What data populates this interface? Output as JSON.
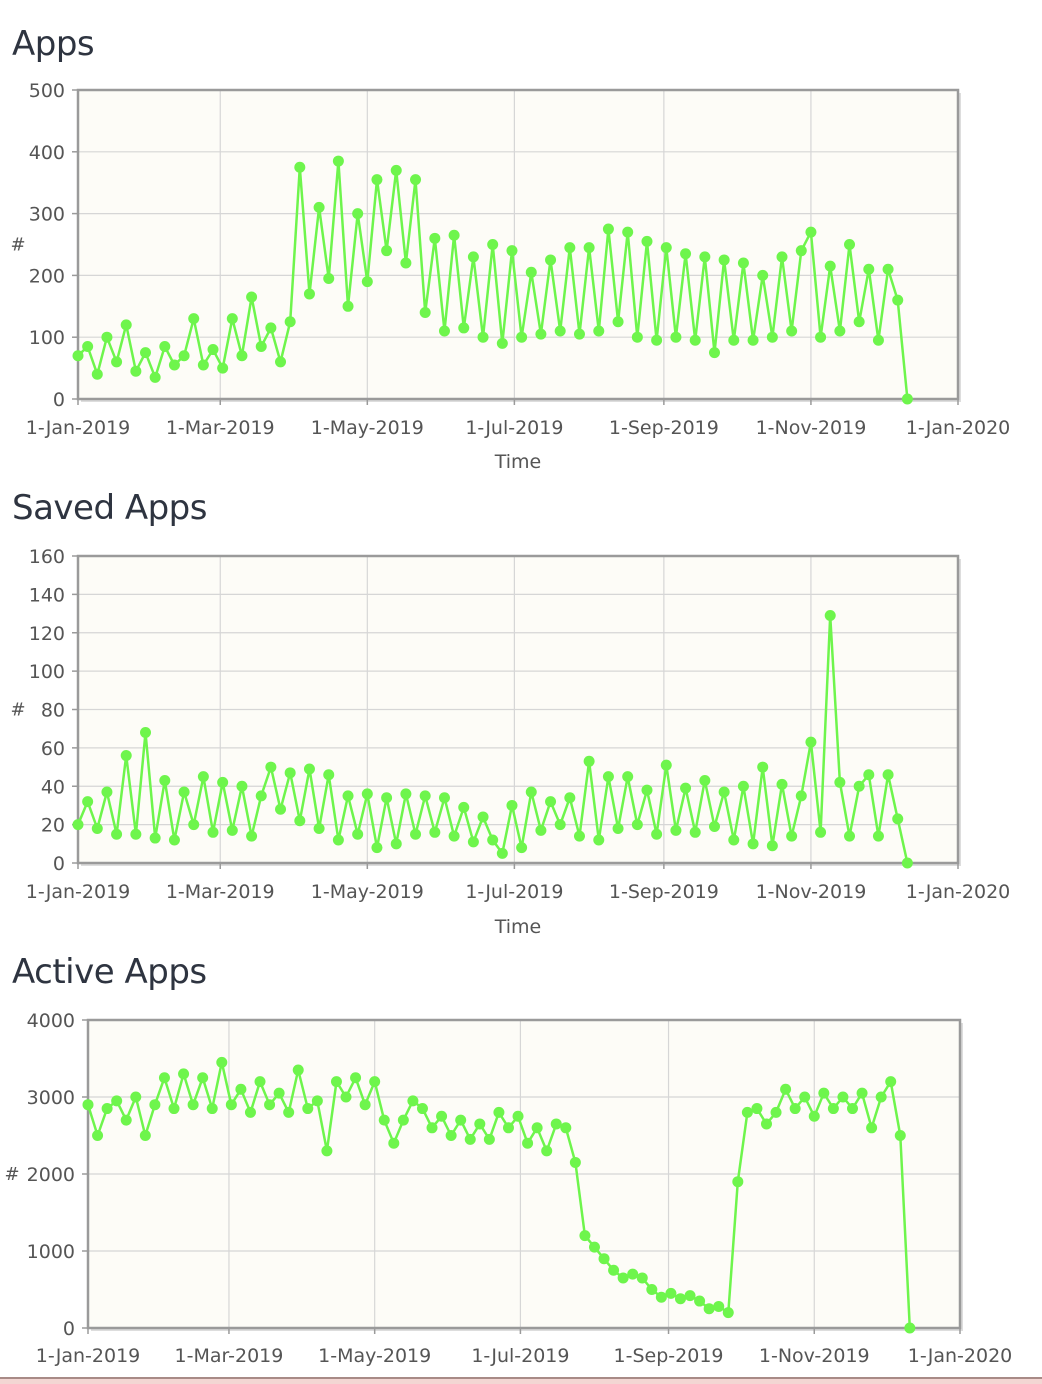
{
  "colors": {
    "series": "#6ef54c",
    "plot_bg": "#fdfcf7",
    "grid": "#d6d6d6",
    "frame": "#9a9a9a"
  },
  "chart_data": [
    {
      "title": "Apps",
      "type": "line",
      "xlabel": "Time",
      "ylabel": "#",
      "ylim": [
        0,
        500
      ],
      "yticks": [
        0,
        100,
        200,
        300,
        400,
        500
      ],
      "xlim": [
        "2019-01-01",
        "2020-01-01"
      ],
      "xticks": [
        [
          "2019-01-01",
          "1-Jan-2019"
        ],
        [
          "2019-03-01",
          "1-Mar-2019"
        ],
        [
          "2019-05-01",
          "1-May-2019"
        ],
        [
          "2019-07-01",
          "1-Jul-2019"
        ],
        [
          "2019-09-01",
          "1-Sep-2019"
        ],
        [
          "2019-11-01",
          "1-Nov-2019"
        ],
        [
          "2020-01-01",
          "1-Jan-2020"
        ]
      ],
      "grid": true,
      "markers": true,
      "x": [
        "2019-01-01",
        "2019-01-05",
        "2019-01-09",
        "2019-01-13",
        "2019-01-17",
        "2019-01-21",
        "2019-01-25",
        "2019-01-29",
        "2019-02-02",
        "2019-02-06",
        "2019-02-10",
        "2019-02-14",
        "2019-02-18",
        "2019-02-22",
        "2019-02-26",
        "2019-03-02",
        "2019-03-06",
        "2019-03-10",
        "2019-03-14",
        "2019-03-18",
        "2019-03-22",
        "2019-03-26",
        "2019-03-30",
        "2019-04-03",
        "2019-04-07",
        "2019-04-11",
        "2019-04-15",
        "2019-04-19",
        "2019-04-23",
        "2019-04-27",
        "2019-05-01",
        "2019-05-05",
        "2019-05-09",
        "2019-05-13",
        "2019-05-17",
        "2019-05-21",
        "2019-05-25",
        "2019-05-29",
        "2019-06-02",
        "2019-06-06",
        "2019-06-10",
        "2019-06-14",
        "2019-06-18",
        "2019-06-22",
        "2019-06-26",
        "2019-06-30",
        "2019-07-04",
        "2019-07-08",
        "2019-07-12",
        "2019-07-16",
        "2019-07-20",
        "2019-07-24",
        "2019-07-28",
        "2019-08-01",
        "2019-08-05",
        "2019-08-09",
        "2019-08-13",
        "2019-08-17",
        "2019-08-21",
        "2019-08-25",
        "2019-08-29",
        "2019-09-02",
        "2019-09-06",
        "2019-09-10",
        "2019-09-14",
        "2019-09-18",
        "2019-09-22",
        "2019-09-26",
        "2019-09-30",
        "2019-10-04",
        "2019-10-08",
        "2019-10-12",
        "2019-10-16",
        "2019-10-20",
        "2019-10-24",
        "2019-10-28",
        "2019-11-01",
        "2019-11-05",
        "2019-11-09",
        "2019-11-13",
        "2019-11-17",
        "2019-11-21",
        "2019-11-25",
        "2019-11-29",
        "2019-12-03",
        "2019-12-07",
        "2019-12-11"
      ],
      "values": [
        70,
        85,
        40,
        100,
        60,
        120,
        45,
        75,
        35,
        85,
        55,
        70,
        130,
        55,
        80,
        50,
        130,
        70,
        165,
        85,
        115,
        60,
        125,
        375,
        170,
        310,
        195,
        385,
        150,
        300,
        190,
        355,
        240,
        370,
        220,
        355,
        140,
        260,
        110,
        265,
        115,
        230,
        100,
        250,
        90,
        240,
        100,
        205,
        105,
        225,
        110,
        245,
        105,
        245,
        110,
        275,
        125,
        270,
        100,
        255,
        95,
        245,
        100,
        235,
        95,
        230,
        75,
        225,
        95,
        220,
        95,
        200,
        100,
        230,
        110,
        240,
        270,
        100,
        215,
        110,
        250,
        125,
        210,
        95,
        210,
        160,
        0
      ]
    },
    {
      "title": "Saved Apps",
      "type": "line",
      "xlabel": "Time",
      "ylabel": "#",
      "ylim": [
        0,
        160
      ],
      "yticks": [
        0,
        20,
        40,
        60,
        80,
        100,
        120,
        140,
        160
      ],
      "xlim": [
        "2019-01-01",
        "2020-01-01"
      ],
      "xticks": [
        [
          "2019-01-01",
          "1-Jan-2019"
        ],
        [
          "2019-03-01",
          "1-Mar-2019"
        ],
        [
          "2019-05-01",
          "1-May-2019"
        ],
        [
          "2019-07-01",
          "1-Jul-2019"
        ],
        [
          "2019-09-01",
          "1-Sep-2019"
        ],
        [
          "2019-11-01",
          "1-Nov-2019"
        ],
        [
          "2020-01-01",
          "1-Jan-2020"
        ]
      ],
      "grid": true,
      "markers": true,
      "x": [
        "2019-01-01",
        "2019-01-05",
        "2019-01-09",
        "2019-01-13",
        "2019-01-17",
        "2019-01-21",
        "2019-01-25",
        "2019-01-29",
        "2019-02-02",
        "2019-02-06",
        "2019-02-10",
        "2019-02-14",
        "2019-02-18",
        "2019-02-22",
        "2019-02-26",
        "2019-03-02",
        "2019-03-06",
        "2019-03-10",
        "2019-03-14",
        "2019-03-18",
        "2019-03-22",
        "2019-03-26",
        "2019-03-30",
        "2019-04-03",
        "2019-04-07",
        "2019-04-11",
        "2019-04-15",
        "2019-04-19",
        "2019-04-23",
        "2019-04-27",
        "2019-05-01",
        "2019-05-05",
        "2019-05-09",
        "2019-05-13",
        "2019-05-17",
        "2019-05-21",
        "2019-05-25",
        "2019-05-29",
        "2019-06-02",
        "2019-06-06",
        "2019-06-10",
        "2019-06-14",
        "2019-06-18",
        "2019-06-22",
        "2019-06-26",
        "2019-06-30",
        "2019-07-04",
        "2019-07-08",
        "2019-07-12",
        "2019-07-16",
        "2019-07-20",
        "2019-07-24",
        "2019-07-28",
        "2019-08-01",
        "2019-08-05",
        "2019-08-09",
        "2019-08-13",
        "2019-08-17",
        "2019-08-21",
        "2019-08-25",
        "2019-08-29",
        "2019-09-02",
        "2019-09-06",
        "2019-09-10",
        "2019-09-14",
        "2019-09-18",
        "2019-09-22",
        "2019-09-26",
        "2019-09-30",
        "2019-10-04",
        "2019-10-08",
        "2019-10-12",
        "2019-10-16",
        "2019-10-20",
        "2019-10-24",
        "2019-10-28",
        "2019-11-01",
        "2019-11-05",
        "2019-11-09",
        "2019-11-13",
        "2019-11-17",
        "2019-11-21",
        "2019-11-25",
        "2019-11-29",
        "2019-12-03",
        "2019-12-07",
        "2019-12-11"
      ],
      "values": [
        20,
        32,
        18,
        37,
        15,
        56,
        15,
        68,
        13,
        43,
        12,
        37,
        20,
        45,
        16,
        42,
        17,
        40,
        14,
        35,
        50,
        28,
        47,
        22,
        49,
        18,
        46,
        12,
        35,
        15,
        36,
        8,
        34,
        10,
        36,
        15,
        35,
        16,
        34,
        14,
        29,
        11,
        24,
        12,
        5,
        30,
        8,
        37,
        17,
        32,
        20,
        34,
        14,
        53,
        12,
        45,
        18,
        45,
        20,
        38,
        15,
        51,
        17,
        39,
        16,
        43,
        19,
        37,
        12,
        40,
        10,
        50,
        9,
        41,
        14,
        35,
        63,
        16,
        129,
        42,
        14,
        40,
        46,
        14,
        46,
        23,
        0
      ]
    },
    {
      "title": "Active Apps",
      "type": "line",
      "xlabel": "",
      "ylabel": "#",
      "ylim": [
        0,
        4000
      ],
      "yticks": [
        0,
        1000,
        2000,
        3000,
        4000
      ],
      "xlim": [
        "2019-01-01",
        "2020-01-01"
      ],
      "xticks": [
        [
          "2019-01-01",
          "1-Jan-2019"
        ],
        [
          "2019-03-01",
          "1-Mar-2019"
        ],
        [
          "2019-05-01",
          "1-May-2019"
        ],
        [
          "2019-07-01",
          "1-Jul-2019"
        ],
        [
          "2019-09-01",
          "1-Sep-2019"
        ],
        [
          "2019-11-01",
          "1-Nov-2019"
        ],
        [
          "2020-01-01",
          "1-Jan-2020"
        ]
      ],
      "grid": true,
      "markers": true,
      "x": [
        "2019-01-01",
        "2019-01-05",
        "2019-01-09",
        "2019-01-13",
        "2019-01-17",
        "2019-01-21",
        "2019-01-25",
        "2019-01-29",
        "2019-02-02",
        "2019-02-06",
        "2019-02-10",
        "2019-02-14",
        "2019-02-18",
        "2019-02-22",
        "2019-02-26",
        "2019-03-02",
        "2019-03-06",
        "2019-03-10",
        "2019-03-14",
        "2019-03-18",
        "2019-03-22",
        "2019-03-26",
        "2019-03-30",
        "2019-04-03",
        "2019-04-07",
        "2019-04-11",
        "2019-04-15",
        "2019-04-19",
        "2019-04-23",
        "2019-04-27",
        "2019-05-01",
        "2019-05-05",
        "2019-05-09",
        "2019-05-13",
        "2019-05-17",
        "2019-05-21",
        "2019-05-25",
        "2019-05-29",
        "2019-06-02",
        "2019-06-06",
        "2019-06-10",
        "2019-06-14",
        "2019-06-18",
        "2019-06-22",
        "2019-06-26",
        "2019-06-30",
        "2019-07-04",
        "2019-07-08",
        "2019-07-12",
        "2019-07-16",
        "2019-07-20",
        "2019-07-24",
        "2019-07-28",
        "2019-08-01",
        "2019-08-05",
        "2019-08-09",
        "2019-08-13",
        "2019-08-17",
        "2019-08-21",
        "2019-08-25",
        "2019-08-29",
        "2019-09-02",
        "2019-09-06",
        "2019-09-10",
        "2019-09-14",
        "2019-09-18",
        "2019-09-22",
        "2019-09-26",
        "2019-09-30",
        "2019-10-04",
        "2019-10-08",
        "2019-10-12",
        "2019-10-16",
        "2019-10-20",
        "2019-10-24",
        "2019-10-28",
        "2019-11-01",
        "2019-11-05",
        "2019-11-09",
        "2019-11-13",
        "2019-11-17",
        "2019-11-21",
        "2019-11-25",
        "2019-11-29",
        "2019-12-03",
        "2019-12-07",
        "2019-12-11"
      ],
      "values": [
        2900,
        2500,
        2850,
        2950,
        2700,
        3000,
        2500,
        2900,
        3250,
        2850,
        3300,
        2900,
        3250,
        2850,
        3450,
        2900,
        3100,
        2800,
        3200,
        2900,
        3050,
        2800,
        3350,
        2850,
        2950,
        2300,
        3200,
        3000,
        3250,
        2900,
        3200,
        2700,
        2400,
        2700,
        2950,
        2850,
        2600,
        2750,
        2500,
        2700,
        2450,
        2650,
        2450,
        2800,
        2600,
        2750,
        2400,
        2600,
        2300,
        2650,
        2600,
        2150,
        1200,
        1050,
        900,
        750,
        650,
        700,
        650,
        500,
        400,
        450,
        380,
        420,
        350,
        250,
        280,
        200,
        1900,
        2800,
        2850,
        2650,
        2800,
        3100,
        2850,
        3000,
        2750,
        3050,
        2850,
        3000,
        2850,
        3050,
        2600,
        3000,
        3200,
        2500,
        0
      ]
    }
  ]
}
